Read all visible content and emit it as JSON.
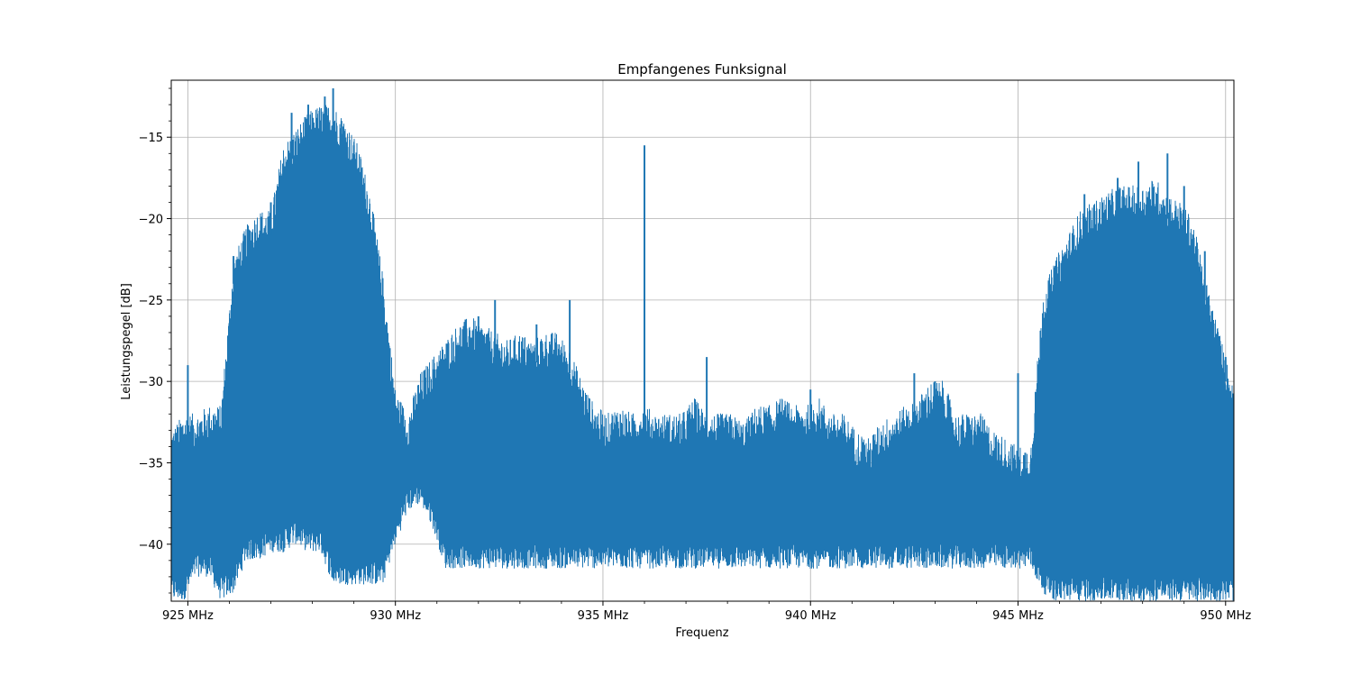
{
  "chart_data": {
    "type": "line",
    "title": "Empfangenes Funksignal",
    "xlabel": "Frequenz",
    "ylabel": "Leistungspegel [dB]",
    "xlim": [
      924.6,
      950.2
    ],
    "ylim": [
      -43.5,
      -11.5
    ],
    "x_ticks": [
      925,
      930,
      935,
      940,
      945,
      950
    ],
    "x_tick_labels": [
      "925 MHz",
      "930 MHz",
      "935 MHz",
      "940 MHz",
      "945 MHz",
      "950 MHz"
    ],
    "y_ticks": [
      -15,
      -20,
      -25,
      -30,
      -35,
      -40
    ],
    "y_tick_labels": [
      "−15",
      "−20",
      "−25",
      "−30",
      "−35",
      "−40"
    ],
    "grid": true,
    "series": [
      {
        "color": "#1f77b4",
        "envelope": {
          "x": [
            924.6,
            924.9,
            925.2,
            925.5,
            925.8,
            926.1,
            926.4,
            926.7,
            927.0,
            927.3,
            927.6,
            927.9,
            928.2,
            928.5,
            928.8,
            929.1,
            929.4,
            929.7,
            930.0,
            930.3,
            930.6,
            930.9,
            931.2,
            931.5,
            931.8,
            932.1,
            932.4,
            932.7,
            933.0,
            933.3,
            933.6,
            933.9,
            934.2,
            934.5,
            934.8,
            935.1,
            935.4,
            935.7,
            936.0,
            936.3,
            936.6,
            936.9,
            937.2,
            937.5,
            937.8,
            938.1,
            938.4,
            938.7,
            939.0,
            939.3,
            939.6,
            939.9,
            940.2,
            940.5,
            940.8,
            941.1,
            941.4,
            941.7,
            942.0,
            942.3,
            942.6,
            942.9,
            943.2,
            943.5,
            943.8,
            944.1,
            944.4,
            944.7,
            945.0,
            945.3,
            945.6,
            945.9,
            946.2,
            946.5,
            946.8,
            947.1,
            947.4,
            947.7,
            948.0,
            948.3,
            948.6,
            948.9,
            949.2,
            949.5,
            949.8,
            950.2
          ],
          "upper": [
            -34.5,
            -33.5,
            -33.5,
            -33.0,
            -33.0,
            -24.0,
            -22.0,
            -21.0,
            -21.0,
            -17.0,
            -16.0,
            -15.0,
            -14.5,
            -14.5,
            -15.5,
            -17.0,
            -20.0,
            -25.0,
            -32.0,
            -33.5,
            -31.0,
            -30.0,
            -29.0,
            -28.0,
            -27.5,
            -28.0,
            -28.5,
            -29.0,
            -28.5,
            -29.0,
            -28.5,
            -28.5,
            -29.5,
            -31.5,
            -33.0,
            -33.5,
            -33.0,
            -33.5,
            -33.0,
            -33.5,
            -33.5,
            -33.5,
            -32.5,
            -33.5,
            -33.5,
            -33.5,
            -34.0,
            -33.0,
            -33.0,
            -32.5,
            -33.0,
            -33.0,
            -32.5,
            -33.5,
            -33.5,
            -34.5,
            -35.0,
            -34.0,
            -33.5,
            -33.0,
            -32.5,
            -31.5,
            -31.5,
            -33.5,
            -33.5,
            -33.5,
            -34.5,
            -35.0,
            -35.5,
            -35.5,
            -26.0,
            -24.0,
            -22.5,
            -21.0,
            -20.5,
            -20.0,
            -19.5,
            -19.5,
            -19.5,
            -19.0,
            -20.0,
            -20.5,
            -21.5,
            -25.0,
            -28.0,
            -32.0
          ],
          "lower": [
            -43.5,
            -43.5,
            -42.0,
            -42.0,
            -43.5,
            -43.0,
            -41.0,
            -41.0,
            -40.5,
            -40.5,
            -40.0,
            -40.5,
            -40.5,
            -42.5,
            -42.5,
            -42.5,
            -42.5,
            -42.5,
            -40.0,
            -38.0,
            -37.5,
            -39.0,
            -41.5,
            -41.5,
            -41.5,
            -41.5,
            -41.5,
            -41.5,
            -41.5,
            -41.5,
            -41.5,
            -41.5,
            -41.5,
            -41.5,
            -41.5,
            -41.5,
            -41.5,
            -41.5,
            -41.5,
            -41.5,
            -41.5,
            -41.5,
            -41.5,
            -41.5,
            -41.5,
            -41.5,
            -41.5,
            -41.5,
            -41.5,
            -41.5,
            -41.5,
            -41.5,
            -41.5,
            -41.5,
            -41.5,
            -41.5,
            -41.5,
            -41.5,
            -41.5,
            -41.5,
            -41.5,
            -41.5,
            -41.5,
            -41.5,
            -41.5,
            -41.5,
            -41.5,
            -41.5,
            -41.5,
            -41.5,
            -43.0,
            -43.5,
            -43.5,
            -43.5,
            -43.5,
            -43.5,
            -43.5,
            -43.5,
            -43.5,
            -43.5,
            -43.5,
            -43.5,
            -43.5,
            -43.5,
            -43.5,
            -43.5
          ]
        },
        "peaks": [
          {
            "x": 925.0,
            "y": -29.0
          },
          {
            "x": 926.1,
            "y": -22.3
          },
          {
            "x": 927.0,
            "y": -19.0
          },
          {
            "x": 927.5,
            "y": -13.5
          },
          {
            "x": 927.9,
            "y": -13.0
          },
          {
            "x": 928.3,
            "y": -12.5
          },
          {
            "x": 928.5,
            "y": -12.0
          },
          {
            "x": 928.7,
            "y": -14.0
          },
          {
            "x": 929.0,
            "y": -15.5
          },
          {
            "x": 932.0,
            "y": -26.0
          },
          {
            "x": 932.4,
            "y": -25.0
          },
          {
            "x": 933.4,
            "y": -26.5
          },
          {
            "x": 934.2,
            "y": -25.0
          },
          {
            "x": 936.0,
            "y": -15.5
          },
          {
            "x": 937.5,
            "y": -28.5
          },
          {
            "x": 940.0,
            "y": -30.5
          },
          {
            "x": 942.5,
            "y": -29.5
          },
          {
            "x": 943.0,
            "y": -30.0
          },
          {
            "x": 945.0,
            "y": -29.5
          },
          {
            "x": 946.6,
            "y": -18.5
          },
          {
            "x": 947.4,
            "y": -17.5
          },
          {
            "x": 947.9,
            "y": -16.5
          },
          {
            "x": 948.6,
            "y": -16.0
          },
          {
            "x": 949.0,
            "y": -18.0
          },
          {
            "x": 949.5,
            "y": -22.0
          },
          {
            "x": 950.0,
            "y": -28.5
          }
        ],
        "dips": [
          {
            "x": 925.7,
            "y": -43.5
          },
          {
            "x": 926.1,
            "y": -43.5
          },
          {
            "x": 926.5,
            "y": -43.5
          },
          {
            "x": 927.3,
            "y": -43.5
          },
          {
            "x": 927.9,
            "y": -43.5
          },
          {
            "x": 928.3,
            "y": -43.5
          },
          {
            "x": 928.8,
            "y": -43.5
          },
          {
            "x": 929.5,
            "y": -43.5
          },
          {
            "x": 947.0,
            "y": -43.5
          },
          {
            "x": 948.2,
            "y": -43.5
          },
          {
            "x": 949.3,
            "y": -43.5
          }
        ]
      }
    ]
  }
}
